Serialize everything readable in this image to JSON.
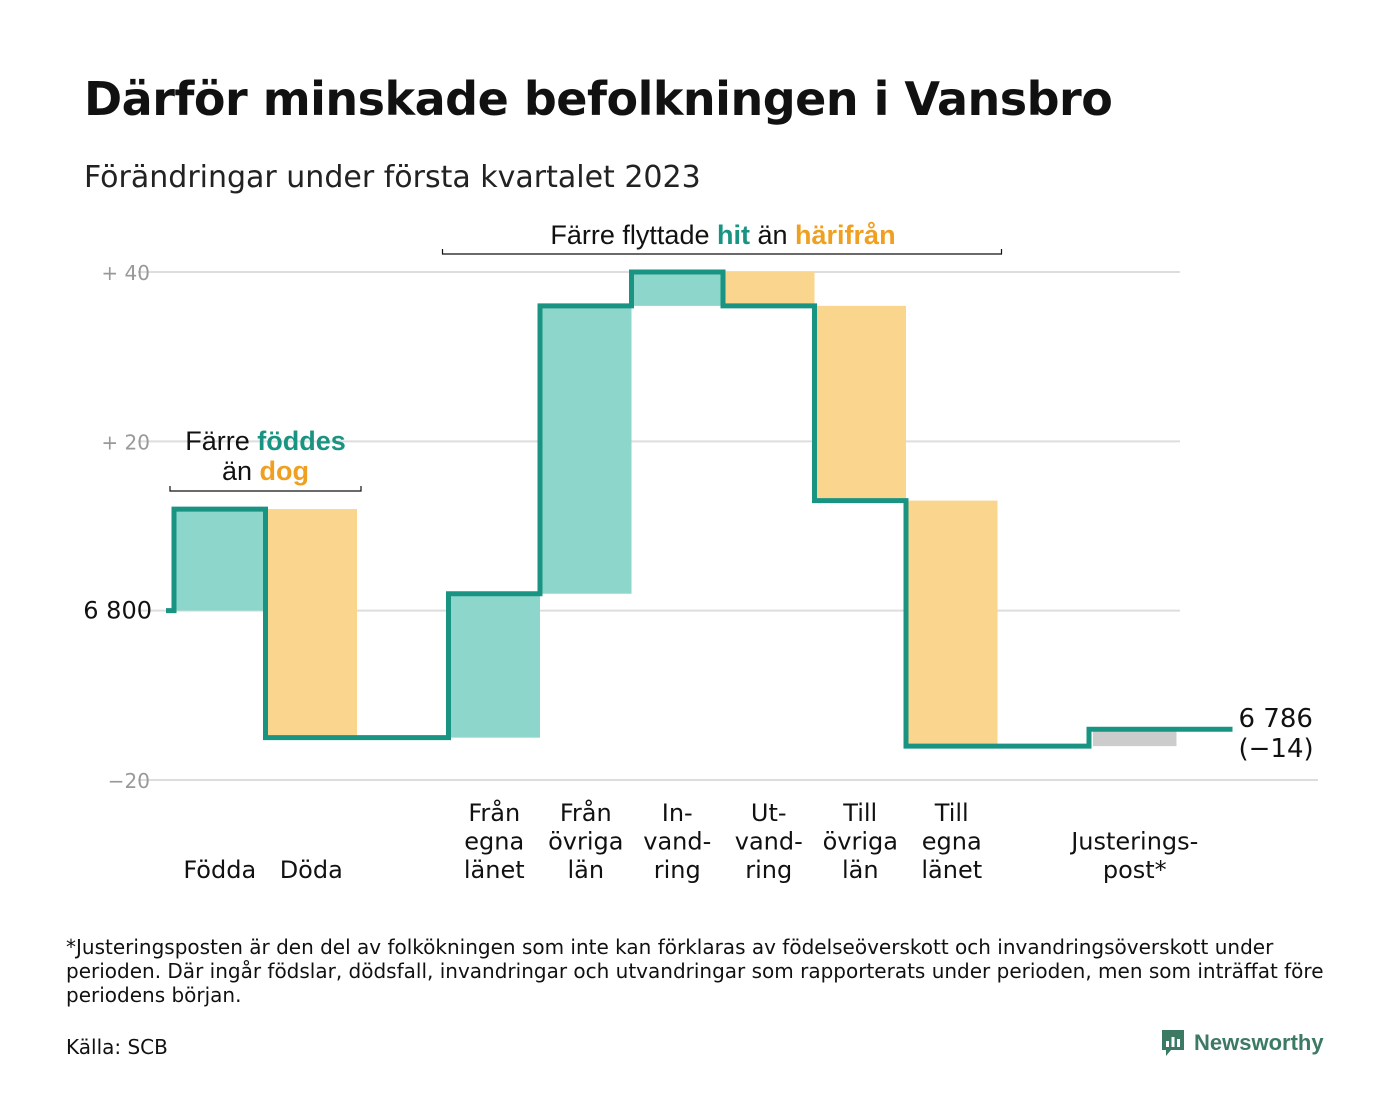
{
  "header": {
    "title": "Därför minskade befolkningen i Vansbro",
    "subtitle": "Förändringar under första kvartalet 2023"
  },
  "colors": {
    "increase": "#8dd6cc",
    "decrease": "#fad58d",
    "adjustment": "#cccccc",
    "line": "#1a9482",
    "teal_text": "#1a9482",
    "orange_text": "#f0a020",
    "grid": "#dddddd",
    "muted_tick": "#999999"
  },
  "chart_data": {
    "type": "waterfall",
    "baseline": 6800,
    "start_value": 6800,
    "end_value": 6786,
    "end_label_value": "6 786",
    "end_label_change": "(−14)",
    "y_axis": {
      "ylim": [
        -20,
        40
      ],
      "ticks": [
        {
          "value": 40,
          "label": "+ 40",
          "muted": true
        },
        {
          "value": 20,
          "label": "+ 20",
          "muted": true
        },
        {
          "value": 0,
          "label": "6 800",
          "muted": false
        },
        {
          "value": -20,
          "label": "−20",
          "muted": true
        }
      ]
    },
    "steps": [
      {
        "label_lines": [
          "Födda"
        ],
        "change": 12,
        "kind": "increase"
      },
      {
        "label_lines": [
          "Döda"
        ],
        "change": -27,
        "kind": "decrease"
      },
      {
        "label_lines": [],
        "change": 0,
        "kind": "gap"
      },
      {
        "label_lines": [
          "Från",
          "egna",
          "länet"
        ],
        "change": 17,
        "kind": "increase"
      },
      {
        "label_lines": [
          "Från",
          "övriga",
          "län"
        ],
        "change": 34,
        "kind": "increase"
      },
      {
        "label_lines": [
          "In-",
          "vand-",
          "ring"
        ],
        "change": 4,
        "kind": "increase"
      },
      {
        "label_lines": [
          "Ut-",
          "vand-",
          "ring"
        ],
        "change": -4,
        "kind": "decrease"
      },
      {
        "label_lines": [
          "Till",
          "övriga",
          "län"
        ],
        "change": -23,
        "kind": "decrease"
      },
      {
        "label_lines": [
          "Till",
          "egna",
          "länet"
        ],
        "change": -29,
        "kind": "decrease"
      },
      {
        "label_lines": [],
        "change": 0,
        "kind": "gap"
      },
      {
        "label_lines": [
          "Justerings-",
          "post*"
        ],
        "change": 2,
        "kind": "adjustment"
      }
    ],
    "annotations": [
      {
        "id": "births",
        "parts": [
          [
            "Färre ",
            "plain"
          ],
          [
            "föddes",
            "teal"
          ]
        ],
        "parts2": [
          [
            "än ",
            "plain"
          ],
          [
            "dog",
            "orange"
          ]
        ],
        "from_step": 0,
        "to_step": 1
      },
      {
        "id": "migration",
        "parts": [
          [
            "Färre flyttade ",
            "plain"
          ],
          [
            "hit",
            "teal"
          ],
          [
            " än ",
            "plain"
          ],
          [
            "härifrån",
            "orange"
          ]
        ],
        "from_step": 3,
        "to_step": 8
      }
    ]
  },
  "footer": {
    "footnote": "*Justeringsposten är den del av folkökningen som inte kan förklaras av födelseöverskott och invandringsöverskott under perioden. Där ingår födslar, dödsfall, invandringar och utvandringar som rapporterats under perioden, men som inträffat före periodens början.",
    "source": "Källa: SCB",
    "brand": "Newsworthy",
    "brand_icon": "newsworthy-logo-icon"
  }
}
